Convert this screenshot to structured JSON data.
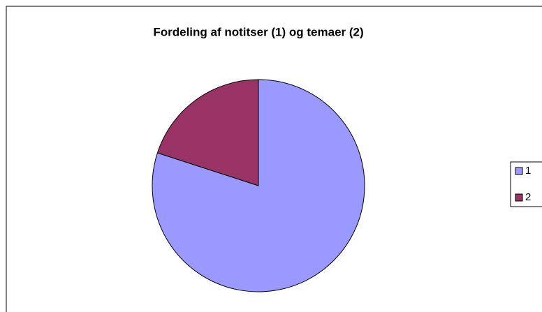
{
  "chart_data": {
    "type": "pie",
    "title": "Fordeling af notitser (1) og temaer (2)",
    "categories": [
      "1",
      "2"
    ],
    "values": [
      80,
      20
    ],
    "colors": [
      "#9999ff",
      "#993366"
    ],
    "legend": "right"
  }
}
